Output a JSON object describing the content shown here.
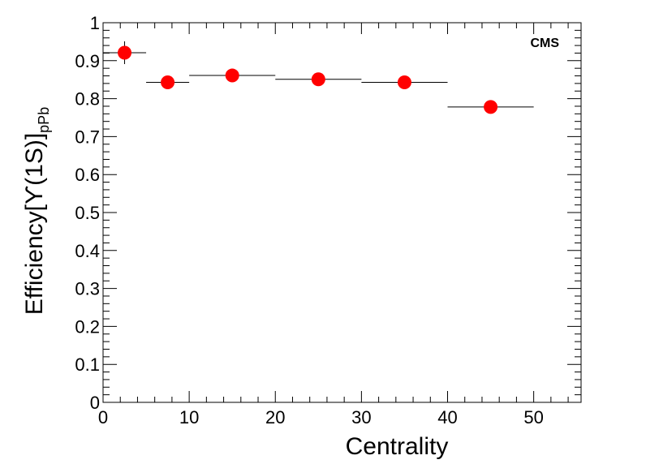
{
  "chart_data": {
    "type": "scatter",
    "title": "",
    "annotation": "CMS",
    "xlabel": "Centrality",
    "ylabel": {
      "prefix": "Efficiency[",
      "symbol": "ϒ",
      "state": "(1S)]",
      "subscript": "pPb"
    },
    "xlim": [
      0,
      55.5
    ],
    "ylim": [
      0,
      1
    ],
    "x_ticks": [
      0,
      10,
      20,
      30,
      40,
      50
    ],
    "x_tick_labels": [
      "0",
      "10",
      "20",
      "30",
      "40",
      "50"
    ],
    "y_ticks": [
      0,
      0.1,
      0.2,
      0.3,
      0.4,
      0.5,
      0.6,
      0.7,
      0.8,
      0.9,
      1
    ],
    "y_tick_labels": [
      "0",
      "0.1",
      "0.2",
      "0.3",
      "0.4",
      "0.5",
      "0.6",
      "0.7",
      "0.8",
      "0.9",
      "1"
    ],
    "grid": false,
    "marker_color": "#ff0000",
    "series": [
      {
        "points": [
          {
            "x": 2.5,
            "y": 0.921,
            "x_low": 0,
            "x_high": 5,
            "y_err": 0.03
          },
          {
            "x": 7.5,
            "y": 0.843,
            "x_low": 5,
            "x_high": 10,
            "y_err": 0.008
          },
          {
            "x": 15,
            "y": 0.861,
            "x_low": 10,
            "x_high": 20,
            "y_err": 0.006
          },
          {
            "x": 25,
            "y": 0.851,
            "x_low": 20,
            "x_high": 30,
            "y_err": 0.006
          },
          {
            "x": 35,
            "y": 0.843,
            "x_low": 30,
            "x_high": 40,
            "y_err": 0.006
          },
          {
            "x": 45,
            "y": 0.778,
            "x_low": 40,
            "x_high": 50,
            "y_err": 0.006
          }
        ]
      }
    ]
  }
}
